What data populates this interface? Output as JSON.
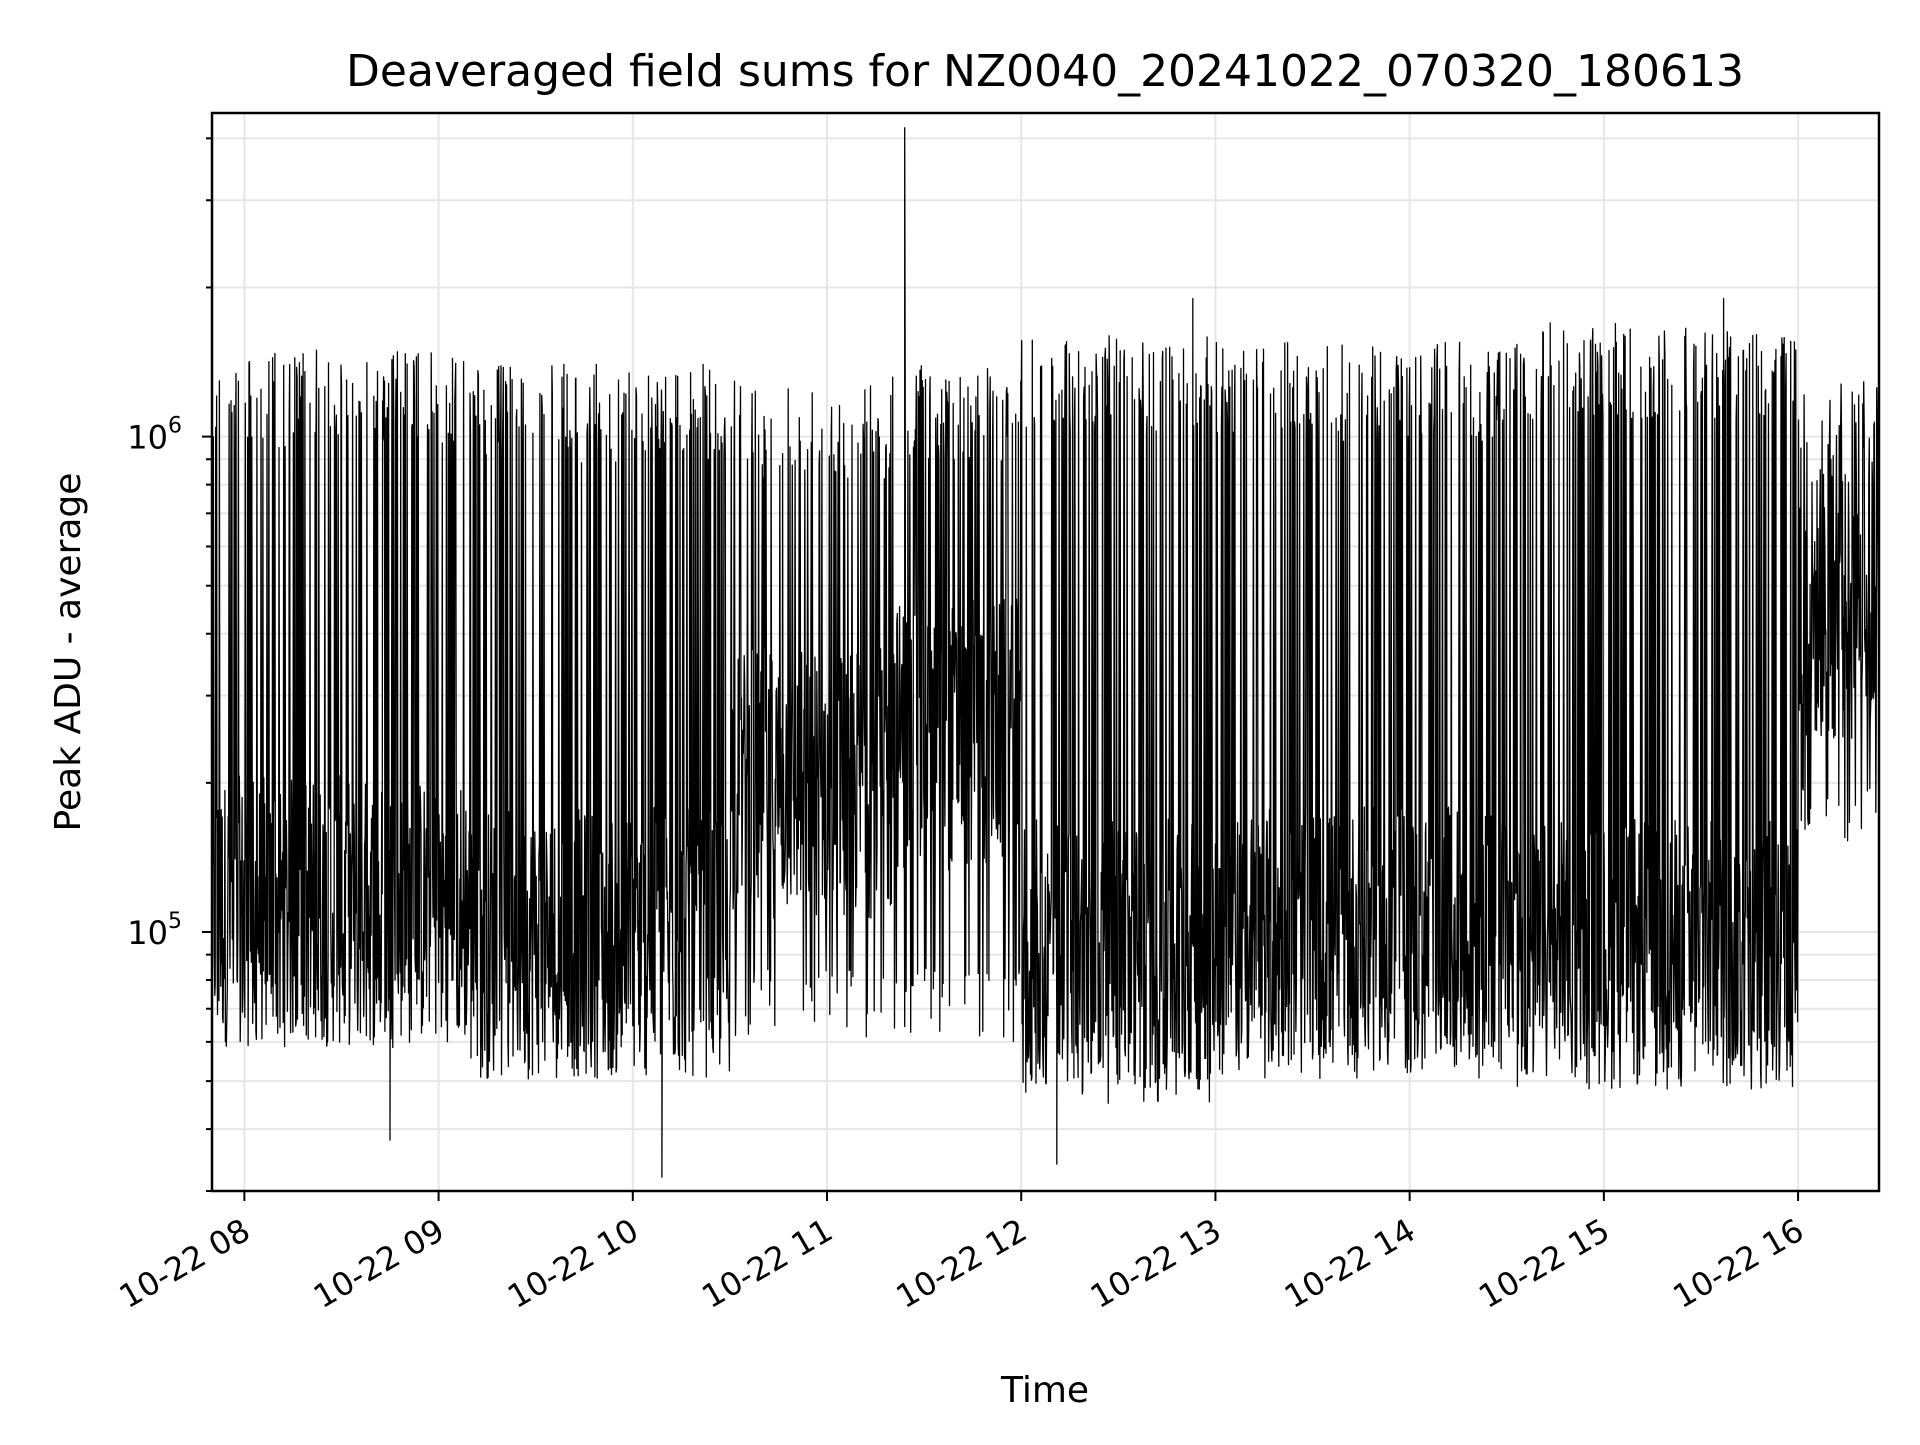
{
  "chart_data": {
    "type": "line",
    "title": "Deaveraged field sums for NZ0040_20241022_070320_180613",
    "xlabel": "Time",
    "ylabel": "Peak ADU - average",
    "yscale": "log",
    "grid": true,
    "xlim": [
      "2024-10-22 07:50",
      "2024-10-22 16:25"
    ],
    "ylim": [
      30000,
      4500000
    ],
    "x_ticks": [
      {
        "t": "2024-10-22 08:00",
        "label": "10-22 08"
      },
      {
        "t": "2024-10-22 09:00",
        "label": "10-22 09"
      },
      {
        "t": "2024-10-22 10:00",
        "label": "10-22 10"
      },
      {
        "t": "2024-10-22 11:00",
        "label": "10-22 11"
      },
      {
        "t": "2024-10-22 12:00",
        "label": "10-22 12"
      },
      {
        "t": "2024-10-22 13:00",
        "label": "10-22 13"
      },
      {
        "t": "2024-10-22 14:00",
        "label": "10-22 14"
      },
      {
        "t": "2024-10-22 15:00",
        "label": "10-22 15"
      },
      {
        "t": "2024-10-22 16:00",
        "label": "10-22 16"
      }
    ],
    "y_ticks": [
      {
        "value": 100000,
        "base": "10",
        "exp": "5"
      },
      {
        "value": 1000000,
        "base": "10",
        "exp": "6"
      }
    ],
    "series": [
      {
        "color": "#000000",
        "segments": [
          {
            "start": "2024-10-22 07:50",
            "end": "2024-10-22 09:10",
            "low": 60000,
            "base": 110000,
            "high": 1500000
          },
          {
            "start": "2024-10-22 09:10",
            "end": "2024-10-22 10:30",
            "low": 55000,
            "base": 95000,
            "high": 1400000
          },
          {
            "start": "2024-10-22 10:30",
            "end": "2024-10-22 11:20",
            "low": 60000,
            "base": 200000,
            "high": 1300000
          },
          {
            "start": "2024-10-22 11:20",
            "end": "2024-10-22 12:00",
            "low": 60000,
            "base": 250000,
            "high": 1400000
          },
          {
            "start": "2024-10-22 12:00",
            "end": "2024-10-22 13:00",
            "low": 45000,
            "base": 90000,
            "high": 1600000
          },
          {
            "start": "2024-10-22 13:00",
            "end": "2024-10-22 14:30",
            "low": 55000,
            "base": 95000,
            "high": 1550000
          },
          {
            "start": "2024-10-22 14:30",
            "end": "2024-10-22 16:00",
            "low": 55000,
            "base": 90000,
            "high": 1700000
          },
          {
            "start": "2024-10-22 16:00",
            "end": "2024-10-22 16:25",
            "low": 150000,
            "base": 450000,
            "high": 1300000
          }
        ],
        "peaks": [
          {
            "t": "2024-10-22 11:24",
            "value": 4200000
          },
          {
            "t": "2024-10-22 12:53",
            "value": 1900000
          },
          {
            "t": "2024-10-22 15:37",
            "value": 1900000
          }
        ],
        "dips": [
          {
            "t": "2024-10-22 08:45",
            "value": 38000
          },
          {
            "t": "2024-10-22 10:09",
            "value": 32000
          },
          {
            "t": "2024-10-22 12:11",
            "value": 34000
          }
        ]
      }
    ]
  }
}
